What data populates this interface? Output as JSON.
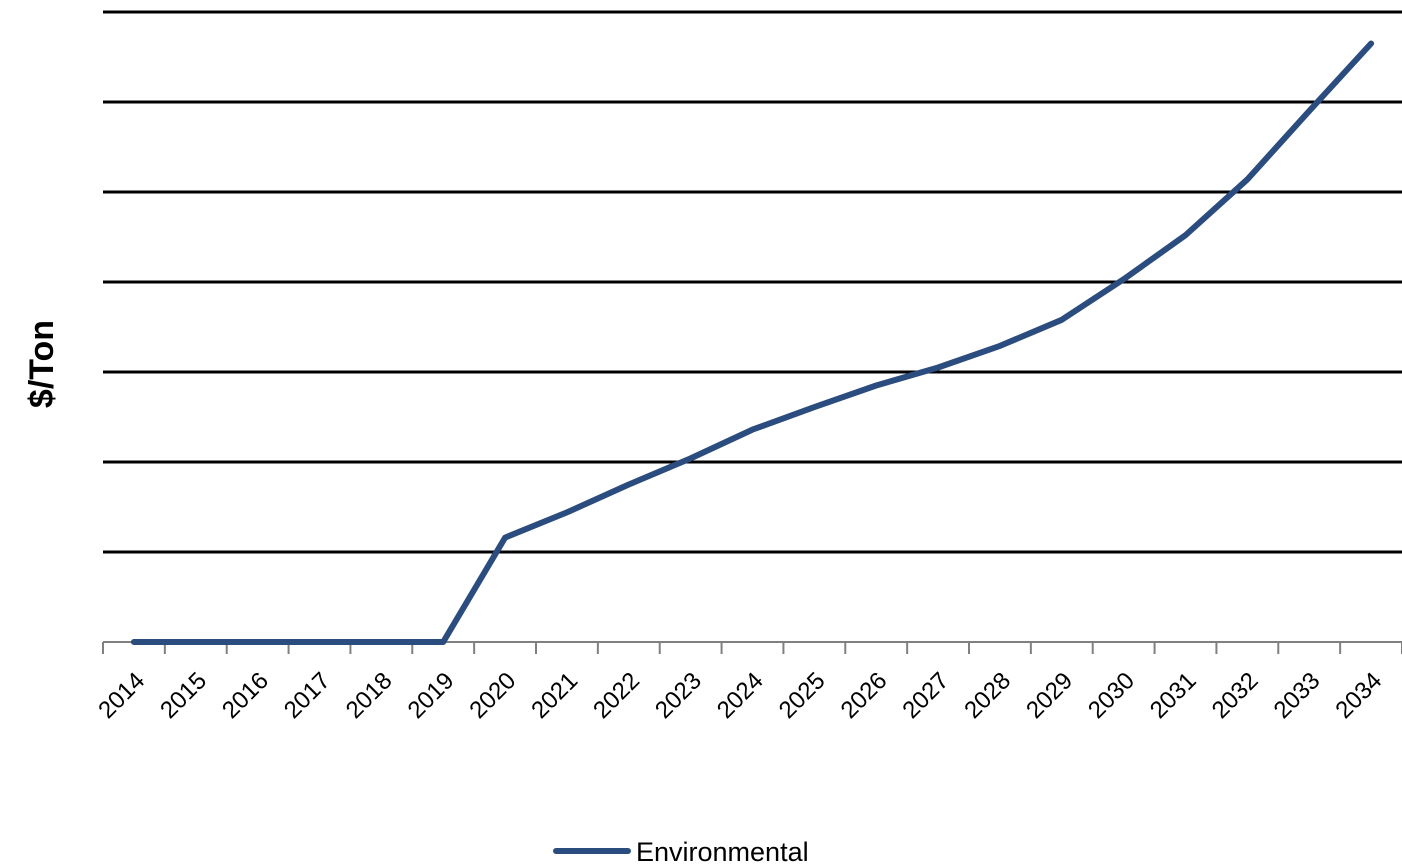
{
  "chart_data": {
    "type": "line",
    "title": "",
    "xlabel": "",
    "ylabel": "$/Ton",
    "ylim": [
      0,
      70
    ],
    "grid": true,
    "legend_position": "bottom",
    "x": [
      "2014",
      "2015",
      "2016",
      "2017",
      "2018",
      "2019",
      "2020",
      "2021",
      "2022",
      "2023",
      "2024",
      "2025",
      "2026",
      "2027",
      "2028",
      "2029",
      "2030",
      "2031",
      "2032",
      "2033",
      "2034"
    ],
    "series": [
      {
        "name": "Environmental",
        "color": "#2b4c7e",
        "values": [
          0,
          0,
          0,
          0,
          0,
          0,
          11.6,
          14.4,
          17.5,
          20.4,
          23.6,
          26.1,
          28.5,
          30.5,
          32.9,
          35.8,
          40.3,
          45.2,
          51.4,
          59.0,
          66.5
        ]
      }
    ]
  }
}
